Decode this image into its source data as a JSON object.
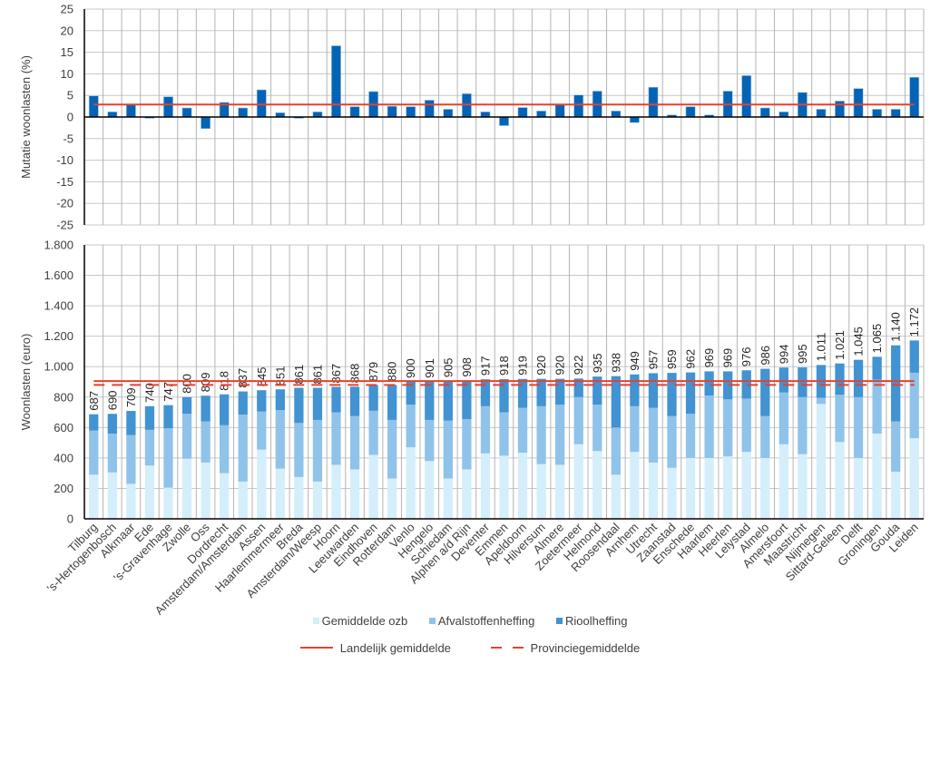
{
  "chart_data": [
    {
      "type": "bar",
      "title": "",
      "ylabel": "Mutatie woonlasten  (%)",
      "xlabel": "",
      "ylim": [
        -25,
        25
      ],
      "yticks": [
        "25",
        "20",
        "15",
        "10",
        "5",
        "0",
        "-5",
        "-10",
        "-15",
        "-20",
        "-25"
      ],
      "ytick_values": [
        25,
        20,
        15,
        10,
        5,
        0,
        -5,
        -10,
        -15,
        -20,
        -25
      ],
      "grid": true,
      "categories": [
        "Tilburg",
        "'s-Hertogenbosch",
        "Alkmaar",
        "Ede",
        "'s-Gravenhage",
        "Zwolle",
        "Oss",
        "Dordrecht",
        "Amsterdam/Amsterdam",
        "Assen",
        "Haarlemmermeer",
        "Breda",
        "Amsterdam/Weesp",
        "Hoorn",
        "Leeuwarden",
        "Eindhoven",
        "Rotterdam",
        "Venlo",
        "Hengelo",
        "Schiedam",
        "Alphen a/d Rijn",
        "Deventer",
        "Emmen",
        "Apeldoorn",
        "Hilversum",
        "Almere",
        "Zoetermeer",
        "Helmond",
        "Roosendaal",
        "Arnhem",
        "Utrecht",
        "Zaanstad",
        "Enschede",
        "Haarlem",
        "Heerlen",
        "Lelystad",
        "Almelo",
        "Amersfoort",
        "Maastricht",
        "Nijmegen",
        "Sittard-Geleen",
        "Delft",
        "Groningen",
        "Gouda",
        "Leiden"
      ],
      "series": [
        {
          "name": "Mutatie woonlasten",
          "color": "#0563b5",
          "values": [
            4.9,
            1.2,
            2.8,
            -0.3,
            4.7,
            2.1,
            -2.7,
            3.4,
            2.1,
            6.3,
            1.0,
            -0.3,
            1.2,
            16.5,
            2.4,
            5.9,
            2.5,
            2.4,
            3.9,
            1.8,
            5.4,
            1.2,
            -2.0,
            2.2,
            1.4,
            2.9,
            5.1,
            6.0,
            1.4,
            -1.3,
            6.9,
            0.5,
            2.4,
            0.5,
            6.0,
            9.6,
            2.1,
            1.2,
            5.7,
            1.8,
            3.7,
            6.6,
            1.8,
            1.8,
            9.2
          ]
        }
      ],
      "reference_lines": [
        {
          "name": "Landelijk gemiddelde",
          "value": 2.9,
          "color": "#e8402f",
          "style": "solid"
        }
      ]
    },
    {
      "type": "bar",
      "stacked": true,
      "title": "",
      "ylabel": "Woonlasten  (euro)",
      "xlabel": "",
      "ylim": [
        0,
        1800
      ],
      "yticks": [
        "1.800",
        "1.600",
        "1.400",
        "1.200",
        "1.000",
        "800",
        "600",
        "400",
        "200",
        "0"
      ],
      "ytick_values": [
        1800,
        1600,
        1400,
        1200,
        1000,
        800,
        600,
        400,
        200,
        0
      ],
      "grid": true,
      "legend_position": "bottom",
      "categories": [
        "Tilburg",
        "'s-Hertogenbosch",
        "Alkmaar",
        "Ede",
        "'s-Gravenhage",
        "Zwolle",
        "Oss",
        "Dordrecht",
        "Amsterdam/Amsterdam",
        "Assen",
        "Haarlemmermeer",
        "Breda",
        "Amsterdam/Weesp",
        "Hoorn",
        "Leeuwarden",
        "Eindhoven",
        "Rotterdam",
        "Venlo",
        "Hengelo",
        "Schiedam",
        "Alphen a/d Rijn",
        "Deventer",
        "Emmen",
        "Apeldoorn",
        "Hilversum",
        "Almere",
        "Zoetermeer",
        "Helmond",
        "Roosendaal",
        "Arnhem",
        "Utrecht",
        "Zaanstad",
        "Enschede",
        "Haarlem",
        "Heerlen",
        "Lelystad",
        "Almelo",
        "Amersfoort",
        "Maastricht",
        "Nijmegen",
        "Sittard-Geleen",
        "Delft",
        "Groningen",
        "Gouda",
        "Leiden"
      ],
      "series": [
        {
          "name": "Gemiddelde ozb",
          "color": "#d4eefb",
          "values": [
            290,
            305,
            230,
            350,
            205,
            395,
            370,
            300,
            245,
            455,
            330,
            275,
            245,
            355,
            325,
            420,
            265,
            470,
            380,
            265,
            325,
            430,
            415,
            435,
            360,
            355,
            490,
            445,
            290,
            440,
            370,
            335,
            400,
            400,
            410,
            440,
            400,
            490,
            425,
            755,
            505,
            400,
            560,
            310,
            530
          ]
        },
        {
          "name": "Afvalstoffenheffing",
          "color": "#8fc3ea",
          "values": [
            290,
            255,
            320,
            235,
            390,
            295,
            270,
            315,
            440,
            250,
            385,
            355,
            405,
            345,
            350,
            290,
            385,
            280,
            270,
            380,
            330,
            310,
            285,
            295,
            380,
            395,
            310,
            305,
            310,
            300,
            360,
            340,
            290,
            410,
            375,
            350,
            275,
            340,
            375,
            40,
            310,
            400,
            355,
            330,
            430
          ]
        },
        {
          "name": "Rioolheffing",
          "color": "#4193d1",
          "values": [
            107,
            130,
            159,
            155,
            152,
            110,
            169,
            203,
            152,
            140,
            136,
            231,
            211,
            167,
            193,
            169,
            230,
            150,
            251,
            260,
            253,
            177,
            218,
            189,
            180,
            170,
            122,
            185,
            338,
            209,
            227,
            284,
            272,
            159,
            184,
            186,
            311,
            164,
            195,
            216,
            206,
            245,
            150,
            500,
            212
          ]
        }
      ],
      "totals": [
        687,
        690,
        709,
        740,
        747,
        800,
        809,
        818,
        837,
        845,
        851,
        861,
        861,
        867,
        868,
        879,
        880,
        900,
        901,
        905,
        908,
        917,
        918,
        919,
        920,
        920,
        922,
        935,
        938,
        949,
        957,
        959,
        962,
        969,
        969,
        976,
        986,
        994,
        995,
        1011,
        1021,
        1045,
        1065,
        1140,
        1172
      ],
      "total_labels": [
        "687",
        "690",
        "709",
        "740",
        "747",
        "800",
        "809",
        "818",
        "837",
        "845",
        "851",
        "861",
        "861",
        "867",
        "868",
        "879",
        "880",
        "900",
        "901",
        "905",
        "908",
        "917",
        "918",
        "919",
        "920",
        "920",
        "922",
        "935",
        "938",
        "949",
        "957",
        "959",
        "962",
        "969",
        "969",
        "976",
        "986",
        "994",
        "995",
        "1.011",
        "1.021",
        "1.045",
        "1.065",
        "1.140",
        "1.172"
      ],
      "reference_lines": [
        {
          "name": "Landelijk gemiddelde",
          "value": 905,
          "color": "#e8402f",
          "style": "solid"
        },
        {
          "name": "Provinciegemiddelde",
          "value": 880,
          "color": "#e8402f",
          "style": "dashed"
        }
      ]
    }
  ],
  "legend": {
    "row1": [
      {
        "label": "Gemiddelde ozb",
        "color": "#d4eefb"
      },
      {
        "label": "Afvalstoffenheffing",
        "color": "#8fc3ea"
      },
      {
        "label": "Rioolheffing",
        "color": "#4193d1"
      }
    ],
    "row2": [
      {
        "label": "Landelijk gemiddelde",
        "color": "#e8402f",
        "style": "solid"
      },
      {
        "label": "Provinciegemiddelde",
        "color": "#e8402f",
        "style": "dashed"
      }
    ]
  }
}
